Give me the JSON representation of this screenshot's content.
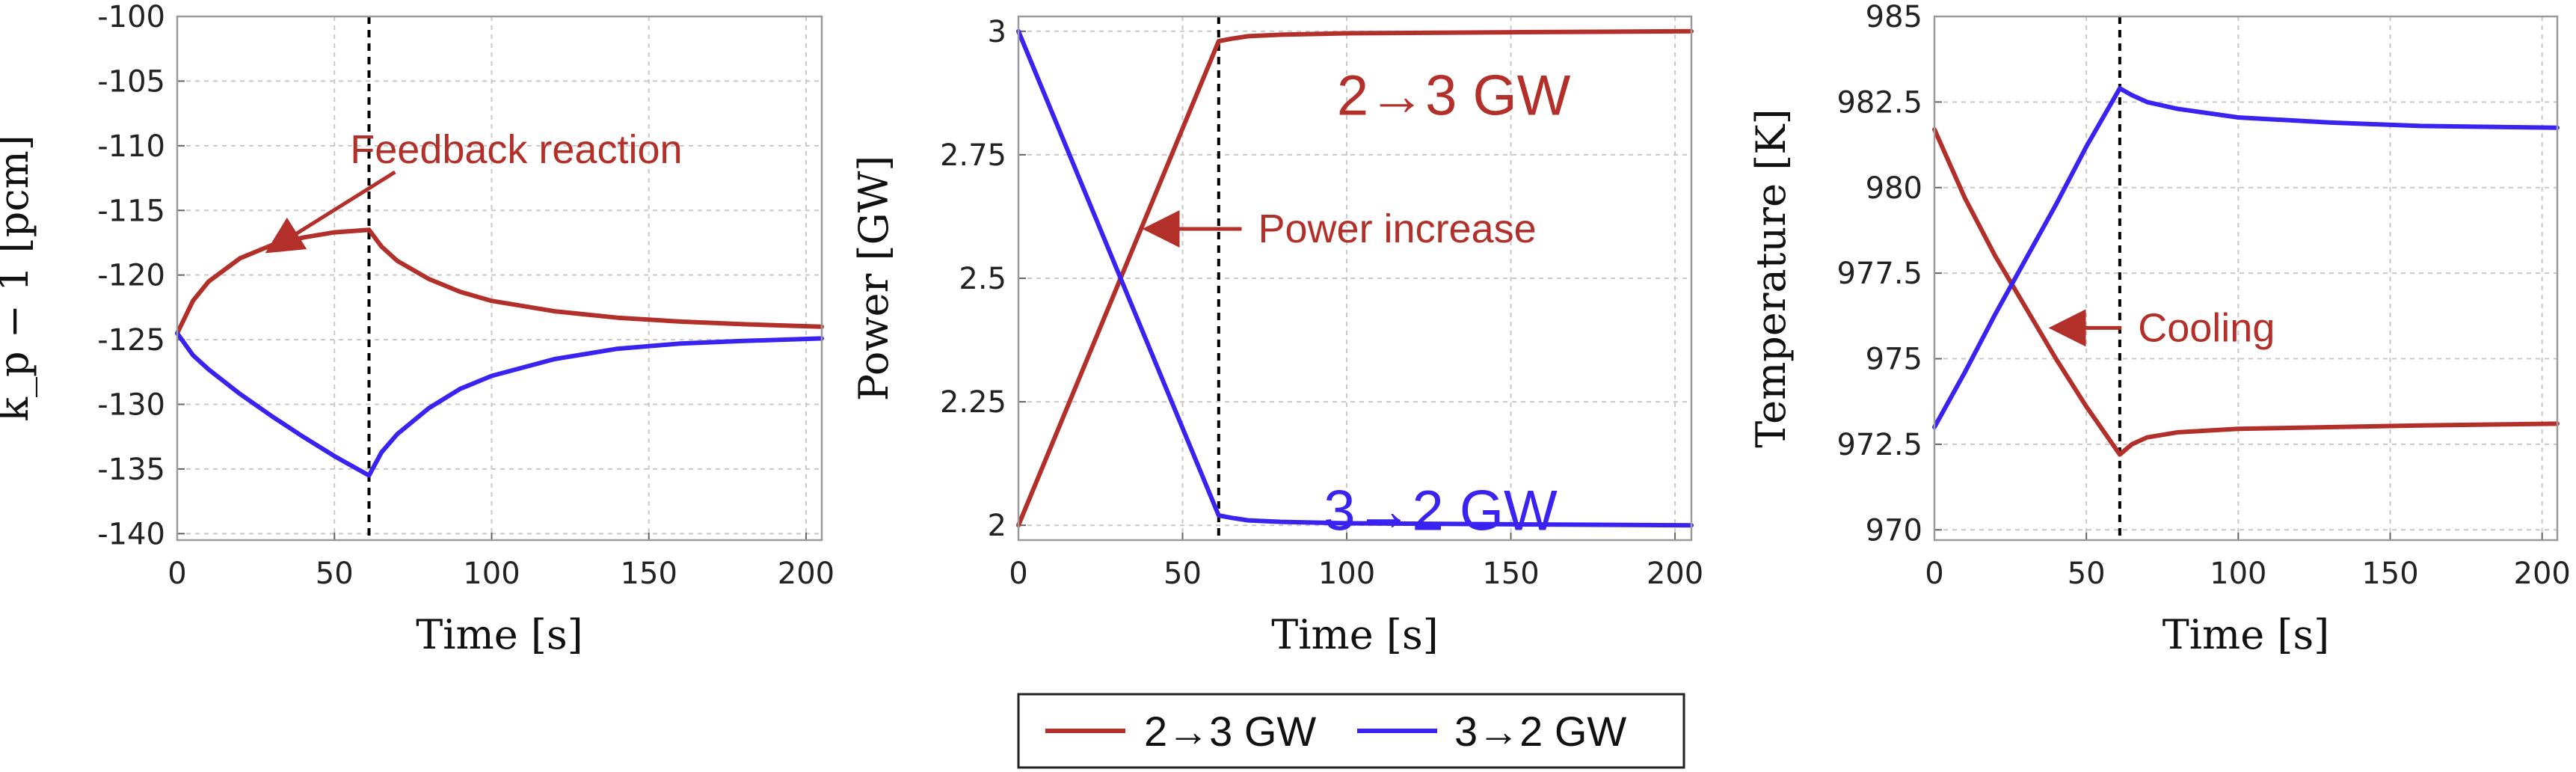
{
  "colors": {
    "red": "#b3302a",
    "blue": "#3a22f0",
    "annotation": "#b3302a"
  },
  "legend": {
    "items": [
      {
        "label": "2→3 GW",
        "color": "#b3302a"
      },
      {
        "label": "3→2 GW",
        "color": "#3a22f0"
      }
    ]
  },
  "chart_data": [
    {
      "type": "line",
      "xlabel": "Time [s]",
      "ylabel": "k_p − 1 [pcm]",
      "xlim": [
        0,
        205
      ],
      "ylim": [
        -140.5,
        -100
      ],
      "xticks": [
        0,
        50,
        100,
        150,
        200
      ],
      "yticks": [
        -100,
        -105,
        -110,
        -115,
        -120,
        -125,
        -130,
        -135,
        -140
      ],
      "ytick_labels": [
        "-100",
        "-105",
        "-110",
        "-115",
        "-120",
        "-125",
        "-130",
        "-135",
        "-140"
      ],
      "grid": true,
      "vertical_marker_x": 61,
      "series": [
        {
          "name": "2→3 GW",
          "color": "#b3302a",
          "x": [
            0,
            5,
            10,
            20,
            30,
            40,
            50,
            61,
            65,
            70,
            80,
            90,
            100,
            120,
            140,
            160,
            180,
            205
          ],
          "y": [
            -124.5,
            -122.0,
            -120.5,
            -118.7,
            -117.7,
            -117.1,
            -116.7,
            -116.5,
            -117.8,
            -118.9,
            -120.3,
            -121.3,
            -122.0,
            -122.8,
            -123.3,
            -123.6,
            -123.8,
            -124.0
          ]
        },
        {
          "name": "3→2 GW",
          "color": "#3a22f0",
          "x": [
            0,
            5,
            10,
            20,
            30,
            40,
            50,
            61,
            65,
            70,
            80,
            90,
            100,
            120,
            140,
            160,
            180,
            205
          ],
          "y": [
            -124.5,
            -126.2,
            -127.3,
            -129.2,
            -130.9,
            -132.5,
            -134.0,
            -135.5,
            -133.7,
            -132.3,
            -130.3,
            -128.8,
            -127.8,
            -126.5,
            -125.7,
            -125.3,
            -125.1,
            -124.9
          ]
        }
      ],
      "annotations": [
        {
          "text": "Feedback reaction",
          "x": 55,
          "y": -110.3,
          "arrow_to": [
            30,
            -118.0
          ]
        }
      ]
    },
    {
      "type": "line",
      "xlabel": "Time [s]",
      "ylabel": "Power [GW]",
      "xlim": [
        0,
        205
      ],
      "ylim": [
        1.97,
        3.03
      ],
      "xticks": [
        0,
        50,
        100,
        150,
        200
      ],
      "yticks": [
        2,
        2.25,
        2.5,
        2.75,
        3
      ],
      "ytick_labels": [
        "2",
        "2.25",
        "2.5",
        "2.75",
        "3"
      ],
      "grid": true,
      "vertical_marker_x": 61,
      "series": [
        {
          "name": "2→3 GW",
          "color": "#b3302a",
          "x": [
            0,
            61,
            65,
            70,
            80,
            100,
            150,
            205
          ],
          "y": [
            2.0,
            2.98,
            2.985,
            2.99,
            2.993,
            2.996,
            2.998,
            3.0
          ]
        },
        {
          "name": "3→2 GW",
          "color": "#3a22f0",
          "x": [
            0,
            61,
            65,
            70,
            80,
            100,
            150,
            205
          ],
          "y": [
            3.0,
            2.02,
            2.015,
            2.01,
            2.007,
            2.004,
            2.002,
            2.0
          ]
        }
      ],
      "annotations": [
        {
          "text": "Power increase",
          "x": 73,
          "y": 2.6,
          "arrow_to": [
            40,
            2.6
          ]
        },
        {
          "text": "2→3 GW",
          "x": 97,
          "y": 2.87
        },
        {
          "text": "3→2 GW",
          "x": 93,
          "y": 2.03
        }
      ]
    },
    {
      "type": "line",
      "xlabel": "Time [s]",
      "ylabel": "Temperature [K]",
      "xlim": [
        0,
        205
      ],
      "ylim": [
        969.7,
        985
      ],
      "xticks": [
        0,
        50,
        100,
        150,
        200
      ],
      "yticks": [
        970,
        972.5,
        975,
        977.5,
        980,
        982.5,
        985
      ],
      "ytick_labels": [
        "970",
        "972.5",
        "975",
        "977.5",
        "980",
        "982.5",
        "985"
      ],
      "grid": true,
      "vertical_marker_x": 61,
      "series": [
        {
          "name": "2→3 GW",
          "color": "#b3302a",
          "x": [
            0,
            10,
            20,
            30,
            40,
            50,
            61,
            65,
            70,
            80,
            100,
            130,
            160,
            205
          ],
          "y": [
            981.7,
            979.7,
            978.0,
            976.5,
            975.0,
            973.6,
            972.2,
            972.5,
            972.7,
            972.85,
            972.95,
            973.0,
            973.05,
            973.1
          ]
        },
        {
          "name": "3→2 GW",
          "color": "#3a22f0",
          "x": [
            0,
            10,
            20,
            30,
            40,
            50,
            61,
            65,
            70,
            80,
            100,
            130,
            160,
            205
          ],
          "y": [
            973.0,
            974.6,
            976.3,
            977.9,
            979.5,
            981.2,
            982.9,
            982.7,
            982.5,
            982.3,
            982.05,
            981.9,
            981.8,
            981.75
          ]
        }
      ],
      "annotations": [
        {
          "text": "Cooling",
          "x": 67,
          "y": 975.9,
          "arrow_to": [
            40,
            975.9
          ]
        }
      ]
    }
  ]
}
